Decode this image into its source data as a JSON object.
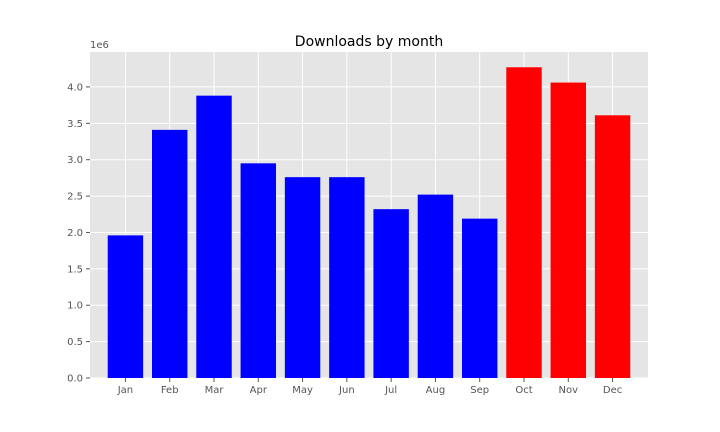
{
  "chart_data": {
    "type": "bar",
    "title": "Downloads by month",
    "xlabel": "",
    "ylabel": "",
    "y_offset_label": "1e6",
    "categories": [
      "Jan",
      "Feb",
      "Mar",
      "Apr",
      "May",
      "Jun",
      "Jul",
      "Aug",
      "Sep",
      "Oct",
      "Nov",
      "Dec"
    ],
    "values": [
      1960000,
      3410000,
      3880000,
      2950000,
      2760000,
      2760000,
      2320000,
      2520000,
      2190000,
      4270000,
      4060000,
      3610000
    ],
    "colors": [
      "#0000ff",
      "#0000ff",
      "#0000ff",
      "#0000ff",
      "#0000ff",
      "#0000ff",
      "#0000ff",
      "#0000ff",
      "#0000ff",
      "#ff0000",
      "#ff0000",
      "#ff0000"
    ],
    "yticks": [
      0,
      500000,
      1000000,
      1500000,
      2000000,
      2500000,
      3000000,
      3500000,
      4000000
    ],
    "ytick_labels": [
      "0.0",
      "0.5",
      "1.0",
      "1.5",
      "2.0",
      "2.5",
      "3.0",
      "3.5",
      "4.0"
    ],
    "ylim": [
      0,
      4480000
    ],
    "grid": true,
    "background": "#e5e5e5",
    "grid_color": "#ffffff"
  }
}
